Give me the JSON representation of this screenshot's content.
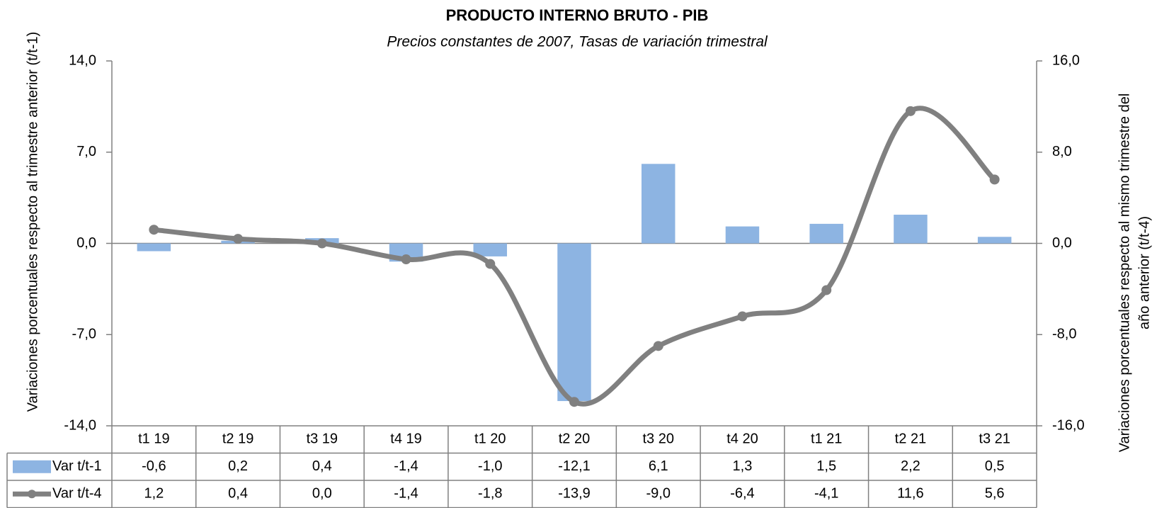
{
  "chart_data": {
    "type": "bar",
    "title": "PRODUCTO INTERNO BRUTO - PIB",
    "subtitle": "Precios constantes de 2007, Tasas de variación trimestral",
    "y_label": "Variaciones porcentuales respecto al trimestre anterior (t/t-1)",
    "y2_label": [
      "Variaciones porcentuales respecto al mismo trimestre del",
      "año anterior (t/t-4)"
    ],
    "categories": [
      "t1 19",
      "t2 19",
      "t3 19",
      "t4 19",
      "t1 20",
      "t2 20",
      "t3 20",
      "t4 20",
      "t1 21",
      "t2 21",
      "t3 21"
    ],
    "series": [
      {
        "name": "Var t/t-1",
        "type": "bar",
        "color": "#8db4e2",
        "values": [
          -0.6,
          0.2,
          0.4,
          -1.4,
          -1.0,
          -12.1,
          6.1,
          1.3,
          1.5,
          2.2,
          0.5
        ],
        "value_labels": [
          "-0,6",
          "0,2",
          "0,4",
          "-1,4",
          "-1,0",
          "-12,1",
          "6,1",
          "1,3",
          "1,5",
          "2,2",
          "0,5"
        ]
      },
      {
        "name": "Var t/t-4",
        "type": "line",
        "axis": "y2",
        "color": "#808080",
        "values": [
          1.2,
          0.4,
          0.0,
          -1.4,
          -1.8,
          -13.9,
          -9.0,
          -6.4,
          -4.1,
          11.6,
          5.6
        ],
        "value_labels": [
          "1,2",
          "0,4",
          "0,0",
          "-1,4",
          "-1,8",
          "-13,9",
          "-9,0",
          "-6,4",
          "-4,1",
          "11,6",
          "5,6"
        ]
      }
    ],
    "ylim": [
      -14,
      14
    ],
    "yticks": [
      {
        "value": -14,
        "label": "-14,0"
      },
      {
        "value": -7,
        "label": "-7,0"
      },
      {
        "value": 0,
        "label": "0,0"
      },
      {
        "value": 7,
        "label": "7,0"
      },
      {
        "value": 14,
        "label": "14,0"
      }
    ],
    "y2lim": [
      -16,
      16
    ],
    "y2ticks": [
      {
        "value": -16,
        "label": "-16,0"
      },
      {
        "value": -8,
        "label": "-8,0"
      },
      {
        "value": 0,
        "label": "0,0"
      },
      {
        "value": 8,
        "label": "8,0"
      },
      {
        "value": 16,
        "label": "16,0"
      }
    ],
    "grid": false
  }
}
